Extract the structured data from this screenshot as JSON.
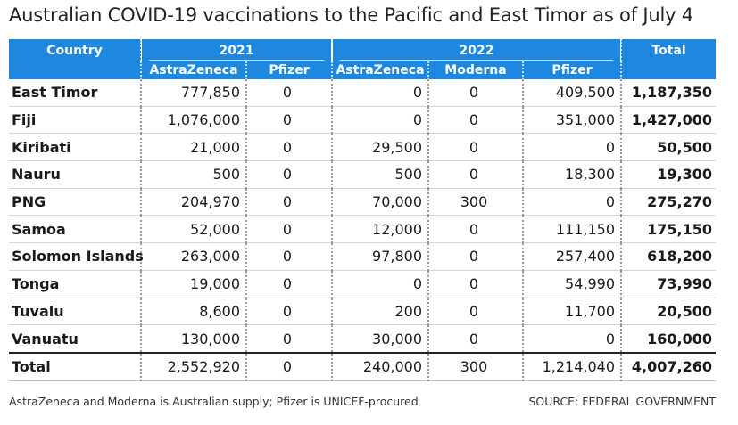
{
  "title": "Australian COVID-19 vaccinations to the Pacific and East Timor as of July 4",
  "header": {
    "country": "Country",
    "year_2021": "2021",
    "year_2022": "2022",
    "total": "Total",
    "astrazeneca_2021": "AstraZeneca",
    "pfizer_2021": "Pfizer",
    "astrazeneca_2022": "AstraZeneca",
    "moderna_2022": "Moderna",
    "pfizer_2022": "Pfizer"
  },
  "chart_data": {
    "type": "table",
    "title": "Australian COVID-19 vaccinations to the Pacific and East Timor as of July 4",
    "columns": [
      "Country",
      "2021 AstraZeneca",
      "2021 Pfizer",
      "2022 AstraZeneca",
      "2022 Moderna",
      "2022 Pfizer",
      "Total"
    ],
    "rows": [
      [
        "East Timor",
        "777,850",
        "0",
        "0",
        "0",
        "409,500",
        "1,187,350"
      ],
      [
        "Fiji",
        "1,076,000",
        "0",
        "0",
        "0",
        "351,000",
        "1,427,000"
      ],
      [
        "Kiribati",
        "21,000",
        "0",
        "29,500",
        "0",
        "0",
        "50,500"
      ],
      [
        "Nauru",
        "500",
        "0",
        "500",
        "0",
        "18,300",
        "19,300"
      ],
      [
        "PNG",
        "204,970",
        "0",
        "70,000",
        "300",
        "0",
        "275,270"
      ],
      [
        "Samoa",
        "52,000",
        "0",
        "12,000",
        "0",
        "111,150",
        "175,150"
      ],
      [
        "Solomon Islands",
        "263,000",
        "0",
        "97,800",
        "0",
        "257,400",
        "618,200"
      ],
      [
        "Tonga",
        "19,000",
        "0",
        "0",
        "0",
        "54,990",
        "73,990"
      ],
      [
        "Tuvalu",
        "8,600",
        "0",
        "200",
        "0",
        "11,700",
        "20,500"
      ],
      [
        "Vanuatu",
        "130,000",
        "0",
        "30,000",
        "0",
        "0",
        "160,000"
      ]
    ],
    "total_row": [
      "Total",
      "2,552,920",
      "0",
      "240,000",
      "300",
      "1,214,040",
      "4,007,260"
    ]
  },
  "footer": {
    "note": "AstraZeneca and Moderna is Australian supply; Pfizer is UNICEF-procured",
    "source": "SOURCE: FEDERAL GOVERNMENT"
  },
  "colors": {
    "header_bg": "#1e88e0",
    "header_text": "#ffffff"
  }
}
